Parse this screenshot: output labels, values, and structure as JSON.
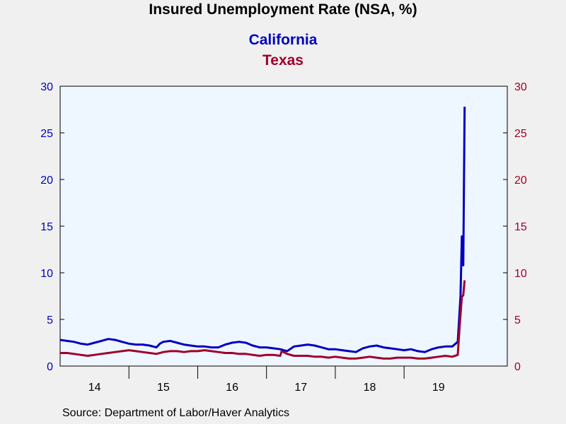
{
  "chart_data": {
    "type": "line",
    "title": "Insured Unemployment Rate (NSA, %)",
    "source": "Source:  Department of Labor/Haver Analytics",
    "x_tick_labels": [
      "14",
      "15",
      "16",
      "17",
      "18",
      "19"
    ],
    "y_left": {
      "ylim": [
        0,
        30
      ],
      "ticks": [
        0,
        5,
        10,
        15,
        20,
        25,
        30
      ],
      "color": "#0000c0"
    },
    "y_right": {
      "ylim": [
        0,
        30
      ],
      "ticks": [
        0,
        5,
        10,
        15,
        20,
        25,
        30
      ],
      "color": "#a0002a"
    },
    "xlim": [
      2014.0,
      2020.5
    ],
    "grid": false,
    "background": "#eef6ff",
    "series": [
      {
        "name": "California",
        "color": "#0000c0",
        "axis": "left",
        "points": [
          [
            2014.0,
            2.8
          ],
          [
            2014.1,
            2.7
          ],
          [
            2014.2,
            2.6
          ],
          [
            2014.3,
            2.4
          ],
          [
            2014.4,
            2.3
          ],
          [
            2014.5,
            2.5
          ],
          [
            2014.6,
            2.7
          ],
          [
            2014.7,
            2.9
          ],
          [
            2014.8,
            2.8
          ],
          [
            2014.9,
            2.6
          ],
          [
            2015.0,
            2.4
          ],
          [
            2015.1,
            2.3
          ],
          [
            2015.2,
            2.3
          ],
          [
            2015.3,
            2.2
          ],
          [
            2015.4,
            2.0
          ],
          [
            2015.45,
            2.4
          ],
          [
            2015.5,
            2.6
          ],
          [
            2015.6,
            2.7
          ],
          [
            2015.7,
            2.5
          ],
          [
            2015.8,
            2.3
          ],
          [
            2015.9,
            2.2
          ],
          [
            2016.0,
            2.1
          ],
          [
            2016.1,
            2.1
          ],
          [
            2016.2,
            2.0
          ],
          [
            2016.3,
            2.0
          ],
          [
            2016.4,
            2.3
          ],
          [
            2016.5,
            2.5
          ],
          [
            2016.6,
            2.6
          ],
          [
            2016.7,
            2.5
          ],
          [
            2016.8,
            2.2
          ],
          [
            2016.9,
            2.0
          ],
          [
            2017.0,
            2.0
          ],
          [
            2017.1,
            1.9
          ],
          [
            2017.2,
            1.8
          ],
          [
            2017.3,
            1.6
          ],
          [
            2017.4,
            2.1
          ],
          [
            2017.5,
            2.2
          ],
          [
            2017.6,
            2.3
          ],
          [
            2017.7,
            2.2
          ],
          [
            2017.8,
            2.0
          ],
          [
            2017.9,
            1.8
          ],
          [
            2018.0,
            1.8
          ],
          [
            2018.1,
            1.7
          ],
          [
            2018.2,
            1.6
          ],
          [
            2018.3,
            1.5
          ],
          [
            2018.4,
            1.9
          ],
          [
            2018.5,
            2.1
          ],
          [
            2018.6,
            2.2
          ],
          [
            2018.7,
            2.0
          ],
          [
            2018.8,
            1.9
          ],
          [
            2018.9,
            1.8
          ],
          [
            2019.0,
            1.7
          ],
          [
            2019.1,
            1.8
          ],
          [
            2019.2,
            1.6
          ],
          [
            2019.3,
            1.5
          ],
          [
            2019.4,
            1.8
          ],
          [
            2019.5,
            2.0
          ],
          [
            2019.6,
            2.1
          ],
          [
            2019.7,
            2.1
          ],
          [
            2019.78,
            2.6
          ],
          [
            2019.82,
            7.5
          ],
          [
            2019.84,
            13.9
          ],
          [
            2019.86,
            10.8
          ],
          [
            2019.88,
            27.8
          ]
        ]
      },
      {
        "name": "Texas",
        "color": "#a0002a",
        "axis": "right",
        "points": [
          [
            2014.0,
            1.4
          ],
          [
            2014.1,
            1.4
          ],
          [
            2014.2,
            1.3
          ],
          [
            2014.3,
            1.2
          ],
          [
            2014.4,
            1.1
          ],
          [
            2014.5,
            1.2
          ],
          [
            2014.6,
            1.3
          ],
          [
            2014.7,
            1.4
          ],
          [
            2014.8,
            1.5
          ],
          [
            2014.9,
            1.6
          ],
          [
            2015.0,
            1.7
          ],
          [
            2015.1,
            1.6
          ],
          [
            2015.2,
            1.5
          ],
          [
            2015.3,
            1.4
          ],
          [
            2015.4,
            1.3
          ],
          [
            2015.5,
            1.5
          ],
          [
            2015.6,
            1.6
          ],
          [
            2015.7,
            1.6
          ],
          [
            2015.8,
            1.5
          ],
          [
            2015.9,
            1.6
          ],
          [
            2016.0,
            1.6
          ],
          [
            2016.1,
            1.7
          ],
          [
            2016.2,
            1.6
          ],
          [
            2016.3,
            1.5
          ],
          [
            2016.4,
            1.4
          ],
          [
            2016.5,
            1.4
          ],
          [
            2016.6,
            1.3
          ],
          [
            2016.7,
            1.3
          ],
          [
            2016.8,
            1.2
          ],
          [
            2016.9,
            1.1
          ],
          [
            2017.0,
            1.2
          ],
          [
            2017.1,
            1.2
          ],
          [
            2017.2,
            1.1
          ],
          [
            2017.22,
            1.6
          ],
          [
            2017.3,
            1.3
          ],
          [
            2017.4,
            1.1
          ],
          [
            2017.5,
            1.1
          ],
          [
            2017.6,
            1.1
          ],
          [
            2017.7,
            1.0
          ],
          [
            2017.8,
            1.0
          ],
          [
            2017.9,
            0.9
          ],
          [
            2018.0,
            1.0
          ],
          [
            2018.1,
            0.9
          ],
          [
            2018.2,
            0.8
          ],
          [
            2018.3,
            0.8
          ],
          [
            2018.4,
            0.9
          ],
          [
            2018.5,
            1.0
          ],
          [
            2018.6,
            0.9
          ],
          [
            2018.7,
            0.8
          ],
          [
            2018.8,
            0.8
          ],
          [
            2018.9,
            0.9
          ],
          [
            2019.0,
            0.9
          ],
          [
            2019.1,
            0.9
          ],
          [
            2019.2,
            0.8
          ],
          [
            2019.3,
            0.8
          ],
          [
            2019.4,
            0.9
          ],
          [
            2019.5,
            1.0
          ],
          [
            2019.6,
            1.1
          ],
          [
            2019.7,
            1.0
          ],
          [
            2019.78,
            1.2
          ],
          [
            2019.81,
            4.5
          ],
          [
            2019.84,
            7.4
          ],
          [
            2019.86,
            7.6
          ],
          [
            2019.88,
            9.2
          ]
        ]
      }
    ]
  }
}
